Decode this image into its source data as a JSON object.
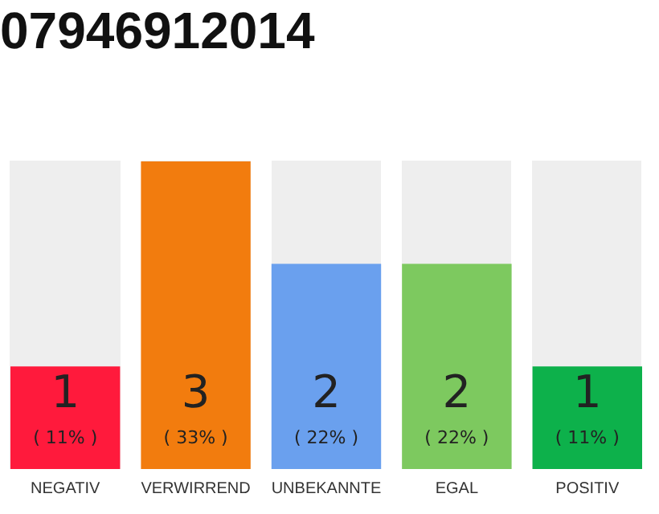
{
  "chart_data": {
    "type": "bar",
    "title": "07946912014",
    "categories": [
      "NEGATIV",
      "VERWIRREND",
      "UNBEKANNTE",
      "EGAL",
      "POSITIV"
    ],
    "values": [
      1,
      3,
      2,
      2,
      1
    ],
    "colors": [
      "#ff1a3c",
      "#f27c0e",
      "#6aa0ee",
      "#7dc95f",
      "#0db14b"
    ],
    "data_labels": true,
    "annotations": [
      "( 11% )",
      "( 33% )",
      "( 22% )",
      "( 22% )",
      "( 11% )"
    ],
    "grid": false,
    "legend": false
  }
}
